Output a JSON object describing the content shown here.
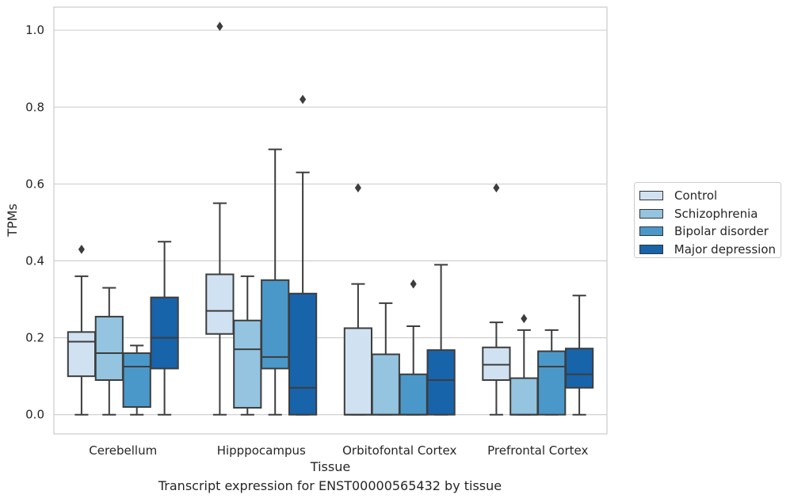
{
  "chart_data": {
    "type": "box",
    "xlabel": "Tissue",
    "ylabel": "TPMs",
    "caption": "Transcript expression for ENST00000565432 by tissue",
    "ylim": [
      -0.05,
      1.06
    ],
    "yticks": [
      "0.0",
      "0.2",
      "0.4",
      "0.6",
      "0.8",
      "1.0"
    ],
    "ytick_values": [
      0.0,
      0.2,
      0.4,
      0.6,
      0.8,
      1.0
    ],
    "categories": [
      "Cerebellum",
      "Hipppocampus",
      "Orbitofontal Cortex",
      "Prefrontal Cortex"
    ],
    "grid": true,
    "legend_position": "right",
    "series": [
      {
        "name": "Control",
        "color": "#d0e1f2",
        "boxes": [
          {
            "min": 0.0,
            "q1": 0.1,
            "median": 0.19,
            "q3": 0.215,
            "max": 0.36,
            "outliers": [
              0.43
            ]
          },
          {
            "min": 0.0,
            "q1": 0.21,
            "median": 0.27,
            "q3": 0.365,
            "max": 0.55,
            "outliers": [
              1.01
            ]
          },
          {
            "min": 0.0,
            "q1": 0.0,
            "median": 0.0,
            "q3": 0.225,
            "max": 0.34,
            "outliers": [
              0.59
            ]
          },
          {
            "min": 0.0,
            "q1": 0.09,
            "median": 0.13,
            "q3": 0.175,
            "max": 0.24,
            "outliers": [
              0.59
            ]
          }
        ]
      },
      {
        "name": "Schizophrenia",
        "color": "#94c4df",
        "boxes": [
          {
            "min": 0.0,
            "q1": 0.09,
            "median": 0.16,
            "q3": 0.255,
            "max": 0.33,
            "outliers": []
          },
          {
            "min": 0.0,
            "q1": 0.018,
            "median": 0.17,
            "q3": 0.245,
            "max": 0.36,
            "outliers": []
          },
          {
            "min": 0.0,
            "q1": 0.0,
            "median": 0.0,
            "q3": 0.157,
            "max": 0.29,
            "outliers": []
          },
          {
            "min": 0.0,
            "q1": 0.0,
            "median": 0.0,
            "q3": 0.095,
            "max": 0.22,
            "outliers": [
              0.25
            ]
          }
        ]
      },
      {
        "name": "Bipolar disorder",
        "color": "#4a98c9",
        "boxes": [
          {
            "min": 0.0,
            "q1": 0.02,
            "median": 0.125,
            "q3": 0.16,
            "max": 0.18,
            "outliers": []
          },
          {
            "min": 0.0,
            "q1": 0.12,
            "median": 0.15,
            "q3": 0.35,
            "max": 0.69,
            "outliers": []
          },
          {
            "min": 0.0,
            "q1": 0.0,
            "median": 0.0,
            "q3": 0.105,
            "max": 0.23,
            "outliers": [
              0.34
            ]
          },
          {
            "min": 0.0,
            "q1": 0.0,
            "median": 0.125,
            "q3": 0.165,
            "max": 0.22,
            "outliers": []
          }
        ]
      },
      {
        "name": "Major depression",
        "color": "#1764ab",
        "boxes": [
          {
            "min": 0.0,
            "q1": 0.12,
            "median": 0.2,
            "q3": 0.305,
            "max": 0.45,
            "outliers": []
          },
          {
            "min": 0.0,
            "q1": 0.0,
            "median": 0.07,
            "q3": 0.315,
            "max": 0.63,
            "outliers": [
              0.82
            ]
          },
          {
            "min": 0.0,
            "q1": 0.0,
            "median": 0.09,
            "q3": 0.168,
            "max": 0.39,
            "outliers": []
          },
          {
            "min": 0.0,
            "q1": 0.07,
            "median": 0.105,
            "q3": 0.172,
            "max": 0.31,
            "outliers": []
          }
        ]
      }
    ]
  }
}
